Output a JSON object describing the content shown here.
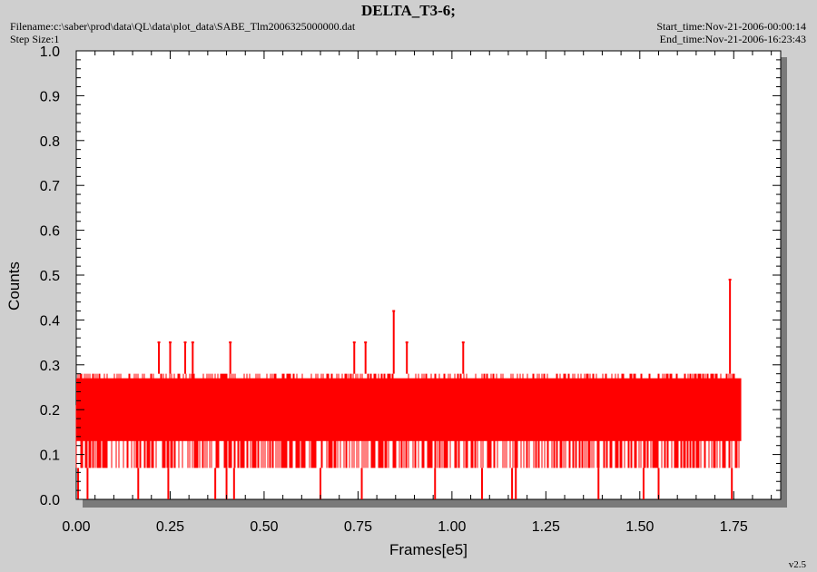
{
  "header": {
    "title": "DELTA_T3-6;",
    "filename": "Filename:c:\\saber\\prod\\data\\QL\\data\\plot_data\\SABE_Tlm2006325000000.dat",
    "step_size": "Step Size:1",
    "start_time": "Start_time:Nov-21-2006-00:00:14",
    "end_time": "End_time:Nov-21-2006-16:23:43"
  },
  "footer": {
    "version": "v2.5"
  },
  "colors": {
    "series": "#ff0000",
    "plot_background": "#ffffff",
    "page_background": "#cfcfcf"
  },
  "chart_data": {
    "type": "line",
    "title": "DELTA_T3-6;",
    "xlabel": "Frames[e5]",
    "ylabel": "Counts",
    "xlim": [
      0,
      1.875
    ],
    "ylim": [
      0,
      1.0
    ],
    "xticks": [
      "0.00",
      "0.25",
      "0.50",
      "0.75",
      "1.00",
      "1.25",
      "1.50",
      "1.75"
    ],
    "yticks": [
      "0.0",
      "0.1",
      "0.2",
      "0.3",
      "0.4",
      "0.5",
      "0.6",
      "0.7",
      "0.8",
      "0.9",
      "1.0"
    ],
    "grid": false,
    "series": [
      {
        "color": "#ff0000",
        "band": {
          "x_start": 0.0,
          "x_end": 1.77,
          "y_low": 0.07,
          "y_high": 0.28
        },
        "spikes": [
          {
            "x": 0.22,
            "y": 0.35
          },
          {
            "x": 0.25,
            "y": 0.35
          },
          {
            "x": 0.29,
            "y": 0.35
          },
          {
            "x": 0.31,
            "y": 0.35
          },
          {
            "x": 0.41,
            "y": 0.35
          },
          {
            "x": 0.74,
            "y": 0.35
          },
          {
            "x": 0.77,
            "y": 0.35
          },
          {
            "x": 0.845,
            "y": 0.42
          },
          {
            "x": 0.88,
            "y": 0.35
          },
          {
            "x": 1.03,
            "y": 0.35
          },
          {
            "x": 1.74,
            "y": 0.49
          }
        ],
        "dips": [
          {
            "x": 0.005,
            "y": 0.0
          },
          {
            "x": 0.03,
            "y": 0.0
          },
          {
            "x": 0.165,
            "y": 0.0
          },
          {
            "x": 0.245,
            "y": 0.0
          },
          {
            "x": 0.37,
            "y": 0.0
          },
          {
            "x": 0.4,
            "y": 0.0
          },
          {
            "x": 0.42,
            "y": 0.0
          },
          {
            "x": 0.65,
            "y": 0.0
          },
          {
            "x": 0.76,
            "y": 0.0
          },
          {
            "x": 0.955,
            "y": 0.0
          },
          {
            "x": 1.08,
            "y": 0.0
          },
          {
            "x": 1.16,
            "y": 0.0
          },
          {
            "x": 1.17,
            "y": 0.0
          },
          {
            "x": 1.39,
            "y": 0.0
          },
          {
            "x": 1.51,
            "y": 0.0
          },
          {
            "x": 1.55,
            "y": 0.0
          },
          {
            "x": 1.745,
            "y": 0.0
          }
        ]
      }
    ]
  }
}
